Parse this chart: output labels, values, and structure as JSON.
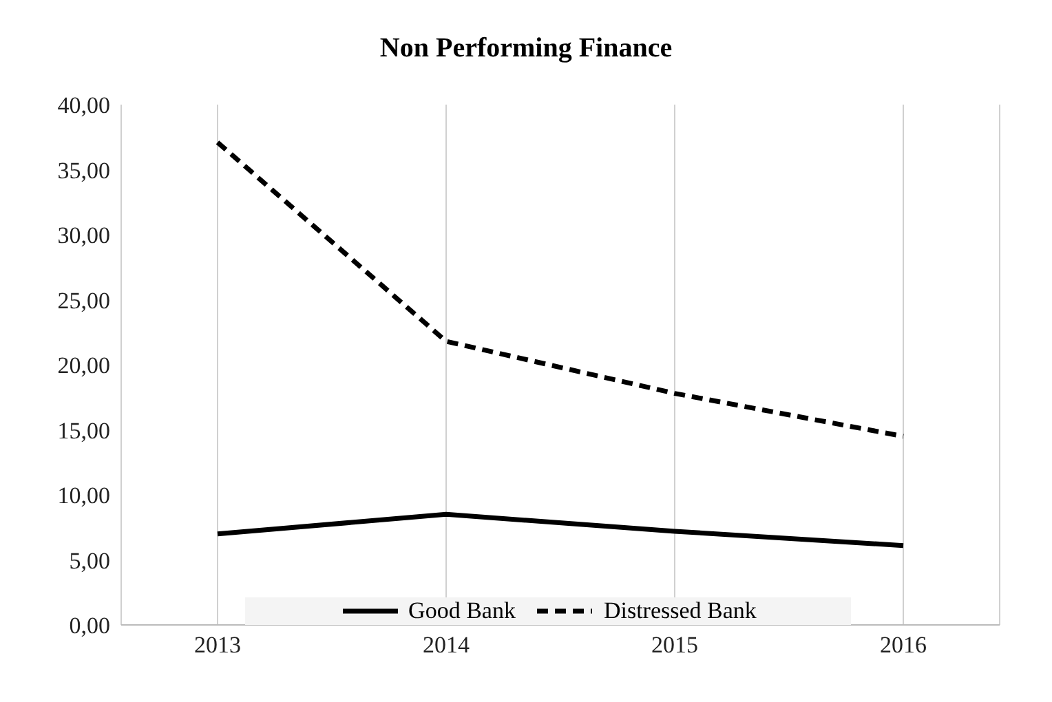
{
  "chart_data": {
    "type": "line",
    "title": "Non Performing Finance",
    "categories": [
      "2013",
      "2014",
      "2015",
      "2016"
    ],
    "series": [
      {
        "name": "Good Bank",
        "color": "#000000",
        "line_style": "solid",
        "values": [
          7.0,
          8.5,
          7.2,
          6.1
        ]
      },
      {
        "name": "Distressed Bank",
        "color": "#000000",
        "line_style": "dashed",
        "values": [
          37.1,
          21.8,
          17.8,
          14.5
        ]
      }
    ],
    "ylim": [
      0,
      40
    ],
    "yticks": [
      {
        "value": 0,
        "label": "0,00"
      },
      {
        "value": 5,
        "label": "5,00"
      },
      {
        "value": 10,
        "label": "10,00"
      },
      {
        "value": 15,
        "label": "15,00"
      },
      {
        "value": 20,
        "label": "20,00"
      },
      {
        "value": 25,
        "label": "25,00"
      },
      {
        "value": 30,
        "label": "30,00"
      },
      {
        "value": 35,
        "label": "35,00"
      },
      {
        "value": 40,
        "label": "40,00"
      }
    ],
    "grid": "x",
    "legend": "bottom",
    "marker": "none"
  }
}
